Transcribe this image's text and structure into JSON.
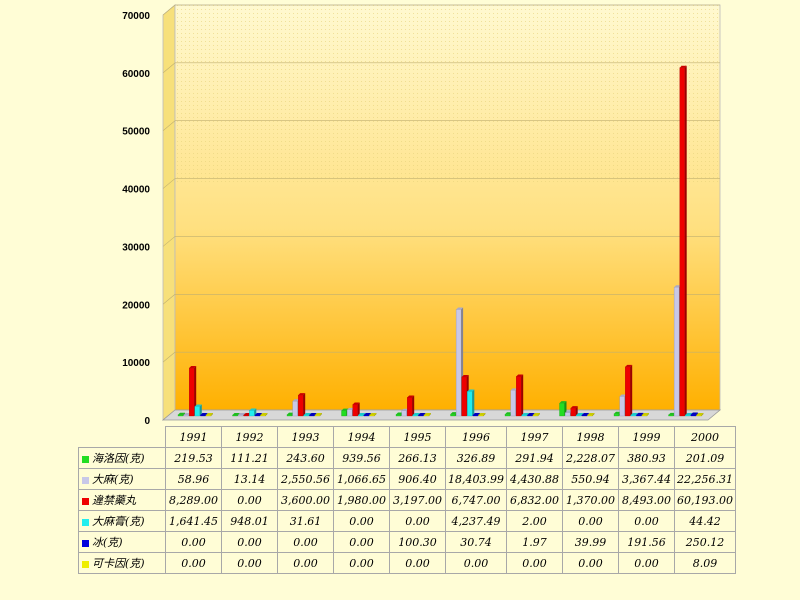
{
  "chart_data": {
    "type": "bar",
    "categories": [
      "1991",
      "1992",
      "1993",
      "1994",
      "1995",
      "1996",
      "1997",
      "1998",
      "1999",
      "2000"
    ],
    "ylim": [
      0,
      70000
    ],
    "yticks": [
      0,
      10000,
      20000,
      30000,
      40000,
      50000,
      60000,
      70000
    ],
    "grid": true,
    "series": [
      {
        "name": "海洛因(克)",
        "color": "#22dd22",
        "values": [
          219.53,
          111.21,
          243.6,
          939.56,
          266.13,
          326.89,
          291.94,
          2228.07,
          380.93,
          201.09
        ],
        "labels": [
          "219.53",
          "111.21",
          "243.60",
          "939.56",
          "266.13",
          "326.89",
          "291.94",
          "2,228.07",
          "380.93",
          "201.09"
        ]
      },
      {
        "name": "大麻(克)",
        "color": "#c8c8e8",
        "values": [
          58.96,
          13.14,
          2550.56,
          1066.65,
          906.4,
          18403.99,
          4430.88,
          550.94,
          3367.44,
          22256.31
        ],
        "labels": [
          "58.96",
          "13.14",
          "2,550.56",
          "1,066.65",
          "906.40",
          "18,403.99",
          "4,430.88",
          "550.94",
          "3,367.44",
          "22,256.31"
        ]
      },
      {
        "name": "違禁藥丸",
        "color": "#ee0000",
        "values": [
          8289.0,
          0.0,
          3600.0,
          1980.0,
          3197.0,
          6747.0,
          6832.0,
          1370.0,
          8493.0,
          60193.0
        ],
        "labels": [
          "8,289.00",
          "0.00",
          "3,600.00",
          "1,980.00",
          "3,197.00",
          "6,747.00",
          "6,832.00",
          "1,370.00",
          "8,493.00",
          "60,193.00"
        ]
      },
      {
        "name": "大麻膏(克)",
        "color": "#22eeee",
        "values": [
          1641.45,
          948.01,
          31.61,
          0.0,
          0.0,
          4237.49,
          2.0,
          0.0,
          0.0,
          44.42
        ],
        "labels": [
          "1,641.45",
          "948.01",
          "31.61",
          "0.00",
          "0.00",
          "4,237.49",
          "2.00",
          "0.00",
          "0.00",
          "44.42"
        ]
      },
      {
        "name": "冰(克)",
        "color": "#0000dd",
        "values": [
          0.0,
          0.0,
          0.0,
          0.0,
          100.3,
          30.74,
          1.97,
          39.99,
          191.56,
          250.12
        ],
        "labels": [
          "0.00",
          "0.00",
          "0.00",
          "0.00",
          "100.30",
          "30.74",
          "1.97",
          "39.99",
          "191.56",
          "250.12"
        ]
      },
      {
        "name": "可卡因(克)",
        "color": "#eeee00",
        "values": [
          0.0,
          0.0,
          0.0,
          0.0,
          0.0,
          0.0,
          0.0,
          0.0,
          0.0,
          8.09
        ],
        "labels": [
          "0.00",
          "0.00",
          "0.00",
          "0.00",
          "0.00",
          "0.00",
          "0.00",
          "0.00",
          "0.00",
          "8.09"
        ]
      }
    ]
  }
}
